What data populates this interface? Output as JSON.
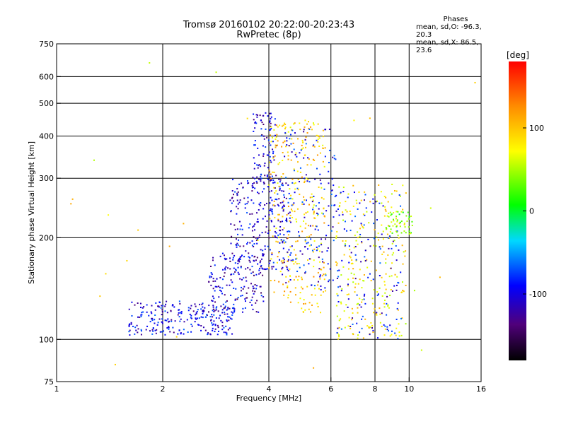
{
  "title": "Tromsø 20160102 20:22:00-20:23:43",
  "subtitle": "RwPretec (8p)",
  "phase_info": {
    "heading": "Phases",
    "line_o": "mean, sd,O: -96.3, 20.3",
    "line_x": "mean, sd,X:  86.5, 23.6"
  },
  "chart_data": {
    "type": "scatter",
    "xlabel": "Frequency [MHz]",
    "ylabel": "Stationary phase Virtual Height [km]",
    "x_scale": "log",
    "y_scale": "log",
    "xlim": [
      1,
      16
    ],
    "ylim": [
      75,
      750
    ],
    "x_ticks": [
      1,
      2,
      4,
      6,
      8,
      10,
      16
    ],
    "y_ticks": [
      75,
      100,
      200,
      300,
      400,
      500,
      600,
      750
    ],
    "grid_x": [
      2,
      4,
      6,
      8,
      10
    ],
    "grid_y": [
      100,
      200,
      300,
      400,
      500,
      600
    ],
    "grid": true,
    "colorbar": {
      "label": "[deg]",
      "range": [
        -180,
        180
      ],
      "ticks": [
        100,
        0,
        -100
      ]
    },
    "clusters": [
      {
        "name": "",
        "freq_range": [
          1.6,
          3.2
        ],
        "height_range": [
          103,
          130
        ],
        "phase_deg": -105,
        "count": 260
      },
      {
        "name": "",
        "freq_range": [
          2.7,
          3.9
        ],
        "height_range": [
          120,
          180
        ],
        "phase_deg": -115,
        "count": 150
      },
      {
        "name": "",
        "freq_range": [
          3.1,
          4.6
        ],
        "height_range": [
          160,
          300
        ],
        "phase_deg": -110,
        "count": 260
      },
      {
        "name": "",
        "freq_range": [
          3.6,
          4.2
        ],
        "height_range": [
          290,
          470
        ],
        "phase_deg": -115,
        "count": 100
      },
      {
        "name": "",
        "freq_range": [
          4.0,
          5.8
        ],
        "height_range": [
          120,
          450
        ],
        "phase_deg": 95,
        "count": 300
      },
      {
        "name": "",
        "freq_range": [
          4.3,
          6.2
        ],
        "height_range": [
          140,
          420
        ],
        "phase_deg": -100,
        "count": 170
      },
      {
        "name": "",
        "freq_range": [
          6.2,
          9.8
        ],
        "height_range": [
          100,
          290
        ],
        "phase_deg": 80,
        "count": 240
      },
      {
        "name": "",
        "freq_range": [
          6.2,
          9.5
        ],
        "height_range": [
          100,
          280
        ],
        "phase_deg": -100,
        "count": 130
      },
      {
        "name": "",
        "freq_range": [
          8.6,
          10.3
        ],
        "height_range": [
          205,
          240
        ],
        "phase_deg": 30,
        "count": 45
      },
      {
        "name": "",
        "freq_range": [
          1.0,
          16.0
        ],
        "height_range": [
          78,
          720
        ],
        "phase_deg": 80,
        "count": 35
      }
    ]
  }
}
